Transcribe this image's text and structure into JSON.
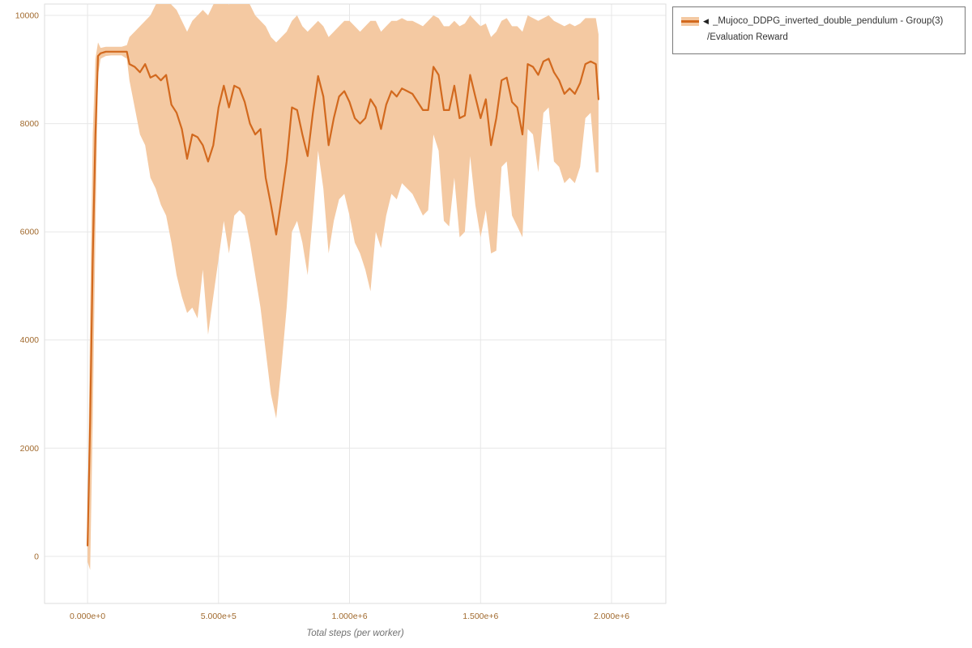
{
  "legend": {
    "collapse_icon": "◀",
    "series_name": "_Mujoco_DDPG_inverted_double_pendulum - Group(3)",
    "metric_name": "/Evaluation Reward"
  },
  "colors": {
    "line": "#d2691e",
    "band": "#f4c9a2",
    "grid": "#e7e7e7",
    "frame": "#dedede",
    "tick": "#a16a2e",
    "axis_title": "#707070"
  },
  "chart_data": {
    "type": "line",
    "title": "",
    "xlabel": "Total steps (per worker)",
    "ylabel": "",
    "legend_position": "top-right outside",
    "grid": true,
    "series_label": "_Mujoco_DDPG_inverted_double_pendulum - Group(3) /Evaluation Reward",
    "xlim": [
      -164000,
      2207000
    ],
    "ylim": [
      -870,
      10210
    ],
    "x_ticks": {
      "values": [
        0,
        500000,
        1000000,
        1500000,
        2000000
      ],
      "labels": [
        "0.000e+0",
        "5.000e+5",
        "1.000e+6",
        "1.500e+6",
        "2.000e+6"
      ]
    },
    "y_ticks": {
      "values": [
        0,
        2000,
        4000,
        6000,
        8000,
        10000
      ],
      "labels": [
        "0",
        "2000",
        "4000",
        "6000",
        "8000",
        "10000"
      ]
    },
    "x": [
      0,
      10000,
      20000,
      30000,
      40000,
      50000,
      70000,
      90000,
      110000,
      130000,
      150000,
      160000,
      180000,
      200000,
      220000,
      240000,
      260000,
      280000,
      300000,
      320000,
      340000,
      360000,
      380000,
      400000,
      420000,
      440000,
      460000,
      480000,
      500000,
      520000,
      540000,
      560000,
      580000,
      600000,
      620000,
      640000,
      660000,
      680000,
      700000,
      720000,
      740000,
      760000,
      780000,
      800000,
      820000,
      840000,
      860000,
      880000,
      900000,
      920000,
      940000,
      960000,
      980000,
      1000000,
      1020000,
      1040000,
      1060000,
      1080000,
      1100000,
      1120000,
      1140000,
      1160000,
      1180000,
      1200000,
      1220000,
      1240000,
      1260000,
      1280000,
      1300000,
      1320000,
      1340000,
      1360000,
      1380000,
      1400000,
      1420000,
      1440000,
      1460000,
      1480000,
      1500000,
      1520000,
      1540000,
      1560000,
      1580000,
      1600000,
      1620000,
      1640000,
      1660000,
      1680000,
      1700000,
      1720000,
      1740000,
      1760000,
      1780000,
      1800000,
      1820000,
      1840000,
      1860000,
      1880000,
      1900000,
      1920000,
      1940000,
      1950000
    ],
    "mean": [
      200,
      2500,
      5500,
      7800,
      9250,
      9300,
      9330,
      9330,
      9330,
      9330,
      9330,
      9100,
      9050,
      8950,
      9100,
      8850,
      8900,
      8800,
      8900,
      8350,
      8200,
      7900,
      7350,
      7800,
      7750,
      7600,
      7300,
      7600,
      8300,
      8700,
      8300,
      8700,
      8650,
      8400,
      8000,
      7800,
      7900,
      7000,
      6500,
      5950,
      6600,
      7300,
      8300,
      8250,
      7800,
      7400,
      8200,
      8880,
      8500,
      7600,
      8100,
      8500,
      8600,
      8400,
      8100,
      8000,
      8100,
      8450,
      8300,
      7900,
      8350,
      8600,
      8500,
      8650,
      8600,
      8550,
      8400,
      8250,
      8250,
      9050,
      8900,
      8250,
      8250,
      8700,
      8100,
      8150,
      8900,
      8500,
      8100,
      8450,
      7600,
      8100,
      8800,
      8850,
      8400,
      8300,
      7800,
      9100,
      9050,
      8900,
      9150,
      9200,
      8950,
      8800,
      8550,
      8650,
      8550,
      8750,
      9100,
      9150,
      9100,
      8450
    ],
    "band_low": [
      -100,
      -250,
      2500,
      6000,
      8900,
      9200,
      9250,
      9260,
      9260,
      9260,
      9200,
      8800,
      8300,
      7800,
      7600,
      7000,
      6800,
      6500,
      6300,
      5800,
      5200,
      4800,
      4500,
      4600,
      4400,
      5300,
      4100,
      4800,
      5500,
      6200,
      5600,
      6300,
      6400,
      6300,
      5800,
      5200,
      4600,
      3800,
      3000,
      2550,
      3500,
      4600,
      6000,
      6200,
      5800,
      5200,
      6300,
      7500,
      6800,
      5600,
      6200,
      6600,
      6700,
      6300,
      5800,
      5600,
      5300,
      4900,
      6000,
      5700,
      6300,
      6700,
      6600,
      6900,
      6800,
      6700,
      6500,
      6300,
      6400,
      7800,
      7500,
      6200,
      6100,
      7000,
      5900,
      6000,
      7400,
      6500,
      5900,
      6400,
      5600,
      5650,
      7200,
      7300,
      6300,
      6100,
      5900,
      7900,
      7800,
      7100,
      8200,
      8300,
      7300,
      7200,
      6900,
      7000,
      6900,
      7200,
      8100,
      8200,
      7100,
      7100
    ],
    "band_high": [
      500,
      4500,
      7800,
      9200,
      9500,
      9400,
      9420,
      9420,
      9420,
      9420,
      9450,
      9600,
      9700,
      9800,
      9900,
      10000,
      10200,
      10250,
      10300,
      10200,
      10100,
      9900,
      9700,
      9900,
      10000,
      10100,
      10000,
      10200,
      10300,
      10300,
      10200,
      10300,
      10250,
      10300,
      10200,
      10000,
      9900,
      9800,
      9600,
      9500,
      9600,
      9700,
      9900,
      10000,
      9800,
      9700,
      9800,
      9900,
      9800,
      9600,
      9700,
      9800,
      9900,
      9900,
      9800,
      9700,
      9800,
      9900,
      9900,
      9700,
      9800,
      9900,
      9900,
      9950,
      9900,
      9900,
      9850,
      9800,
      9900,
      10000,
      9950,
      9800,
      9800,
      9900,
      9800,
      9850,
      10000,
      9900,
      9800,
      9850,
      9600,
      9700,
      9900,
      9950,
      9800,
      9800,
      9700,
      10000,
      9950,
      9900,
      9950,
      10000,
      9900,
      9850,
      9800,
      9850,
      9800,
      9850,
      9950,
      9950,
      9950,
      9650
    ]
  }
}
